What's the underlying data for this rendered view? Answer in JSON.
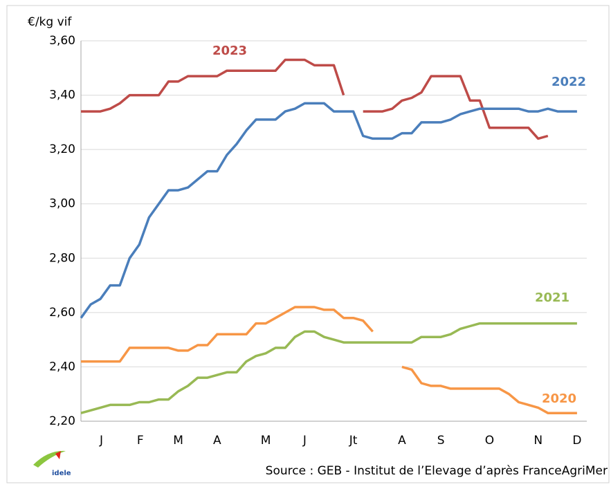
{
  "chart_data": {
    "type": "line",
    "y_label": "€/kg vif",
    "source": "Source : GEB - Institut de l’Elevage d’après FranceAgriMer",
    "logo": "idele",
    "x": [
      1,
      2,
      3,
      4,
      5,
      6,
      7,
      8,
      9,
      10,
      11,
      12,
      13,
      14,
      15,
      16,
      17,
      18,
      19,
      20,
      21,
      22,
      23,
      24,
      25,
      26,
      27,
      28,
      29,
      30,
      31,
      32,
      33,
      34,
      35,
      36,
      37,
      38,
      39,
      40,
      41,
      42,
      43,
      44,
      45,
      46,
      47,
      48,
      49,
      50,
      51,
      52
    ],
    "xlim": [
      1,
      53
    ],
    "xticks": [
      {
        "value": 3.1,
        "label": "J"
      },
      {
        "value": 7.1,
        "label": "F"
      },
      {
        "value": 11,
        "label": "M"
      },
      {
        "value": 15,
        "label": "A"
      },
      {
        "value": 20,
        "label": "M"
      },
      {
        "value": 24,
        "label": "J"
      },
      {
        "value": 29,
        "label": "Jt"
      },
      {
        "value": 34,
        "label": "A"
      },
      {
        "value": 38,
        "label": "S"
      },
      {
        "value": 43,
        "label": "O"
      },
      {
        "value": 48,
        "label": "N"
      },
      {
        "value": 52,
        "label": "D"
      }
    ],
    "ylim": [
      2.2,
      3.6
    ],
    "yticks": [
      {
        "value": 2.2,
        "label": "2,20"
      },
      {
        "value": 2.4,
        "label": "2,40"
      },
      {
        "value": 2.6,
        "label": "2,60"
      },
      {
        "value": 2.8,
        "label": "2,80"
      },
      {
        "value": 3.0,
        "label": "3,00"
      },
      {
        "value": 3.2,
        "label": "3,20"
      },
      {
        "value": 3.4,
        "label": "3,40"
      },
      {
        "value": 3.6,
        "label": "3,60"
      }
    ],
    "grid": true,
    "series": [
      {
        "name": "2023",
        "color": "#be4b48",
        "values": [
          3.34,
          3.34,
          3.34,
          3.35,
          3.37,
          3.4,
          3.4,
          3.4,
          3.4,
          3.45,
          3.45,
          3.47,
          3.47,
          3.47,
          3.47,
          3.49,
          3.49,
          3.49,
          3.49,
          3.49,
          3.49,
          3.53,
          3.53,
          3.53,
          3.51,
          3.51,
          3.51,
          3.4,
          null,
          3.34,
          3.34,
          3.34,
          3.35,
          3.38,
          3.39,
          3.41,
          3.47,
          3.47,
          3.47,
          3.47,
          3.38,
          3.38,
          3.28,
          3.28,
          3.28,
          3.28,
          3.28,
          3.24,
          3.25,
          null,
          null,
          null
        ]
      },
      {
        "name": "2022",
        "color": "#4a7ebb",
        "values": [
          2.58,
          2.63,
          2.65,
          2.7,
          2.7,
          2.8,
          2.85,
          2.95,
          3.0,
          3.05,
          3.05,
          3.06,
          3.09,
          3.12,
          3.12,
          3.18,
          3.22,
          3.27,
          3.31,
          3.31,
          3.31,
          3.34,
          3.35,
          3.37,
          3.37,
          3.37,
          3.34,
          3.34,
          3.34,
          3.25,
          3.24,
          3.24,
          3.24,
          3.26,
          3.26,
          3.3,
          3.3,
          3.3,
          3.31,
          3.33,
          3.34,
          3.35,
          3.35,
          3.35,
          3.35,
          3.35,
          3.34,
          3.34,
          3.35,
          3.34,
          3.34,
          3.34
        ]
      },
      {
        "name": "2021",
        "color": "#98b954",
        "values": [
          2.23,
          2.24,
          2.25,
          2.26,
          2.26,
          2.26,
          2.27,
          2.27,
          2.28,
          2.28,
          2.31,
          2.33,
          2.36,
          2.36,
          2.37,
          2.38,
          2.38,
          2.42,
          2.44,
          2.45,
          2.47,
          2.47,
          2.51,
          2.53,
          2.53,
          2.51,
          2.5,
          2.49,
          2.49,
          2.49,
          2.49,
          2.49,
          2.49,
          2.49,
          2.49,
          2.51,
          2.51,
          2.51,
          2.52,
          2.54,
          2.55,
          2.56,
          2.56,
          2.56,
          2.56,
          2.56,
          2.56,
          2.56,
          2.56,
          2.56,
          2.56,
          2.56
        ]
      },
      {
        "name": "2020",
        "color": "#f79646",
        "values": [
          2.42,
          2.42,
          2.42,
          2.42,
          2.42,
          2.47,
          2.47,
          2.47,
          2.47,
          2.47,
          2.46,
          2.46,
          2.48,
          2.48,
          2.52,
          2.52,
          2.52,
          2.52,
          2.56,
          2.56,
          2.58,
          2.6,
          2.62,
          2.62,
          2.62,
          2.61,
          2.61,
          2.58,
          2.58,
          2.57,
          2.53,
          null,
          null,
          2.4,
          2.39,
          2.34,
          2.33,
          2.33,
          2.32,
          2.32,
          2.32,
          2.32,
          2.32,
          2.32,
          2.3,
          2.27,
          2.26,
          2.25,
          2.23,
          2.23,
          2.23,
          2.23
        ]
      }
    ]
  }
}
